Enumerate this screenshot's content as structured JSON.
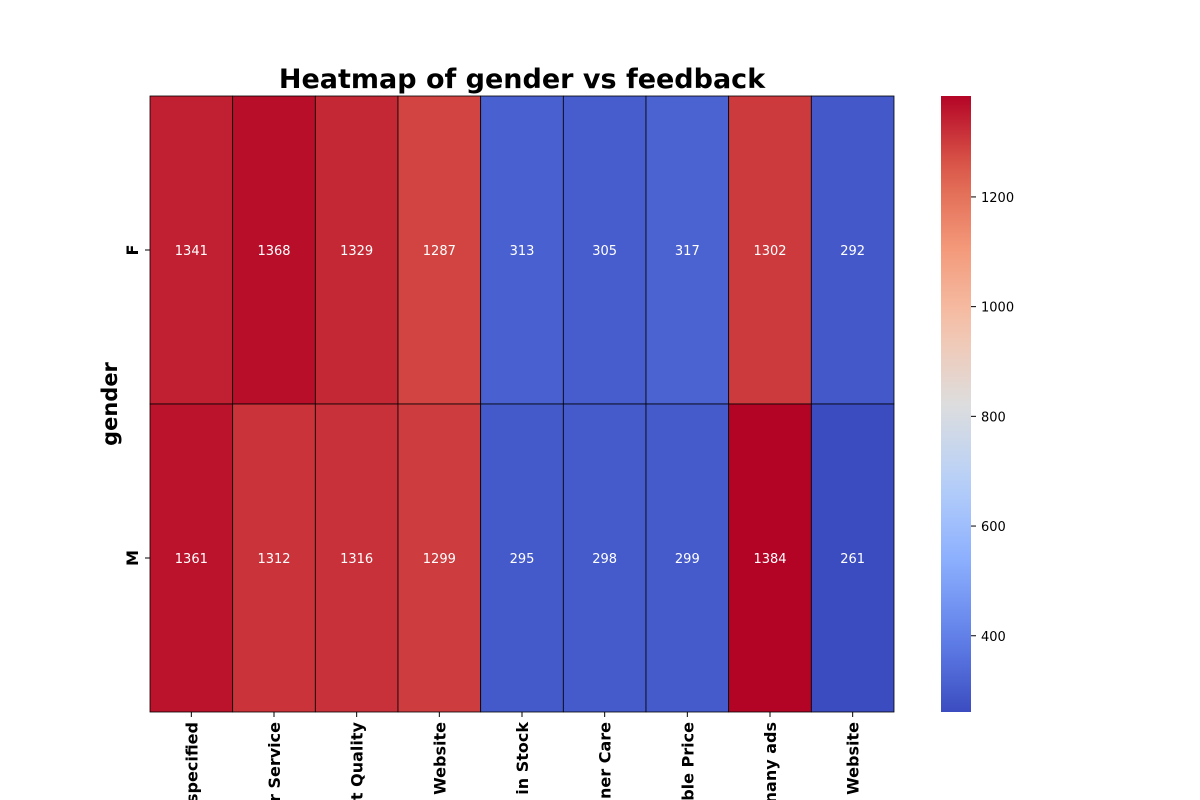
{
  "chart_data": {
    "type": "heatmap",
    "title": "Heatmap of gender vs feedback",
    "ylabel": "gender",
    "xlabel": "",
    "rows": [
      "F",
      "M"
    ],
    "columns": [
      "Not specified",
      "Customer Service",
      "Product Quality",
      "Website",
      "Not in Stock",
      "Customer Care",
      "Reasonable Price",
      "Too many ads",
      "Website"
    ],
    "column_labels_visible": [
      "specified",
      "r Service",
      "t Quality",
      "Website",
      "in Stock",
      "ner Care",
      "ble Price",
      "nany ads",
      "Website"
    ],
    "values": [
      [
        1341,
        1368,
        1329,
        1287,
        313,
        305,
        317,
        1302,
        292
      ],
      [
        1361,
        1312,
        1316,
        1299,
        295,
        298,
        299,
        1384,
        261
      ]
    ],
    "colormap": "coolwarm",
    "vmin": 261,
    "vmax": 1384,
    "colorbar": {
      "ticks": [
        400,
        600,
        800,
        1000,
        1200
      ]
    }
  }
}
